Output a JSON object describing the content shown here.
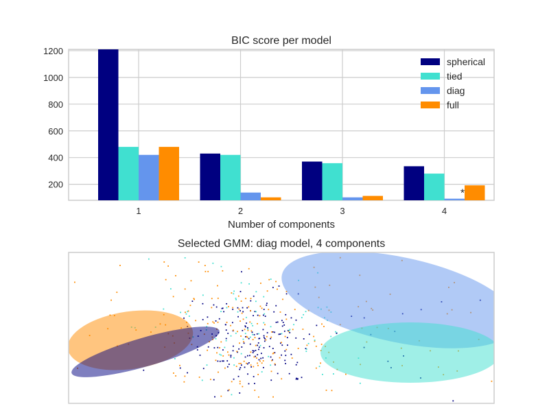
{
  "chart_data": [
    {
      "type": "bar",
      "title": "BIC score per model",
      "xlabel": "Number of components",
      "ylabel": "",
      "categories": [
        "1",
        "2",
        "3",
        "4"
      ],
      "ylim": [
        80,
        1210
      ],
      "yticks": [
        200,
        400,
        600,
        800,
        1000,
        1200
      ],
      "grid": true,
      "legend_position": "top-right",
      "series": [
        {
          "name": "spherical",
          "color": "#000080",
          "values": [
            1210,
            430,
            370,
            335
          ]
        },
        {
          "name": "tied",
          "color": "#40e0d0",
          "values": [
            480,
            420,
            358,
            280
          ]
        },
        {
          "name": "diag",
          "color": "#6495ed",
          "values": [
            420,
            138,
            102,
            92
          ]
        },
        {
          "name": "full",
          "color": "#ff8c00",
          "values": [
            480,
            102,
            113,
            192
          ]
        }
      ],
      "annotations": [
        {
          "text": "*",
          "category": "4",
          "near_series": "diag"
        }
      ]
    },
    {
      "type": "scatter",
      "title": "Selected GMM: diag model, 4 components",
      "xlabel": "",
      "ylabel": "",
      "grid": false,
      "point_colors": [
        "#000080",
        "#40e0d0",
        "#6495ed",
        "#ff8c00"
      ]
    }
  ]
}
